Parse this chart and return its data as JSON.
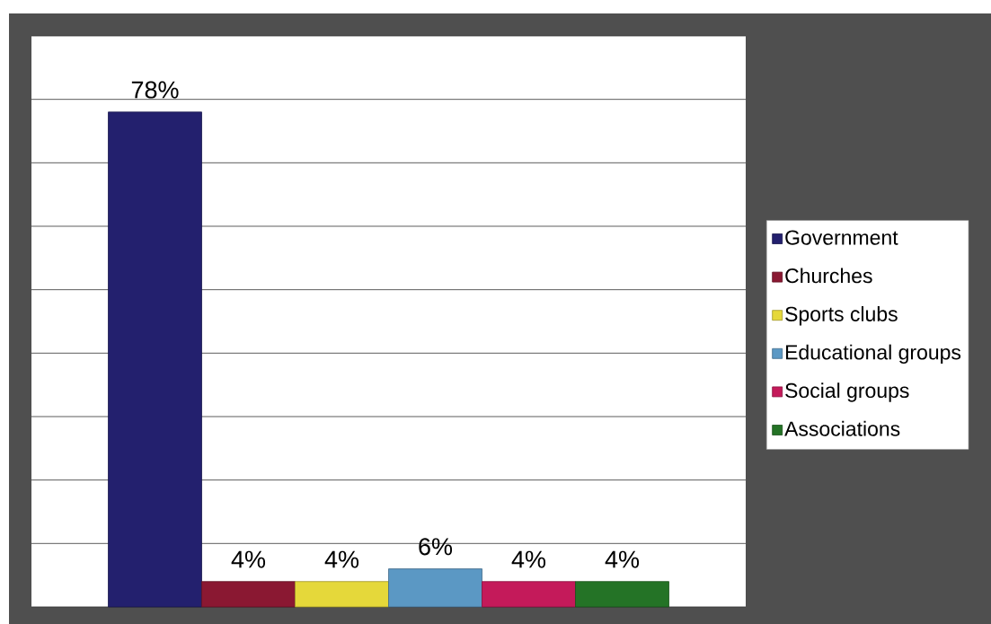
{
  "chart_data": {
    "type": "bar",
    "categories": [
      null
    ],
    "series": [
      {
        "name": "Government",
        "color": "#23206e",
        "values": [
          78
        ],
        "value_labels": [
          "78%"
        ]
      },
      {
        "name": "Churches",
        "color": "#8a1832",
        "values": [
          4
        ],
        "value_labels": [
          "4%"
        ]
      },
      {
        "name": "Sports clubs",
        "color": "#e5d83a",
        "values": [
          4
        ],
        "value_labels": [
          "4%"
        ]
      },
      {
        "name": "Educational groups",
        "color": "#5b98c4",
        "values": [
          6
        ],
        "value_labels": [
          "6%"
        ]
      },
      {
        "name": "Social groups",
        "color": "#c41a5a",
        "values": [
          4
        ],
        "value_labels": [
          "4%"
        ]
      },
      {
        "name": "Associations",
        "color": "#247326",
        "values": [
          4
        ],
        "value_labels": [
          "4%"
        ]
      }
    ],
    "ylim": [
      0,
      90
    ],
    "yticks": [
      {
        "value": 0,
        "label": null
      },
      {
        "value": 10,
        "label": null
      },
      {
        "value": 20,
        "label": null
      },
      {
        "value": 30,
        "label": null
      },
      {
        "value": 40,
        "label": null
      },
      {
        "value": 50,
        "label": null
      },
      {
        "value": 60,
        "label": null
      },
      {
        "value": 70,
        "label": null
      },
      {
        "value": 80,
        "label": null
      },
      {
        "value": 90,
        "label": null
      }
    ],
    "grid": "y",
    "legend": "right"
  }
}
